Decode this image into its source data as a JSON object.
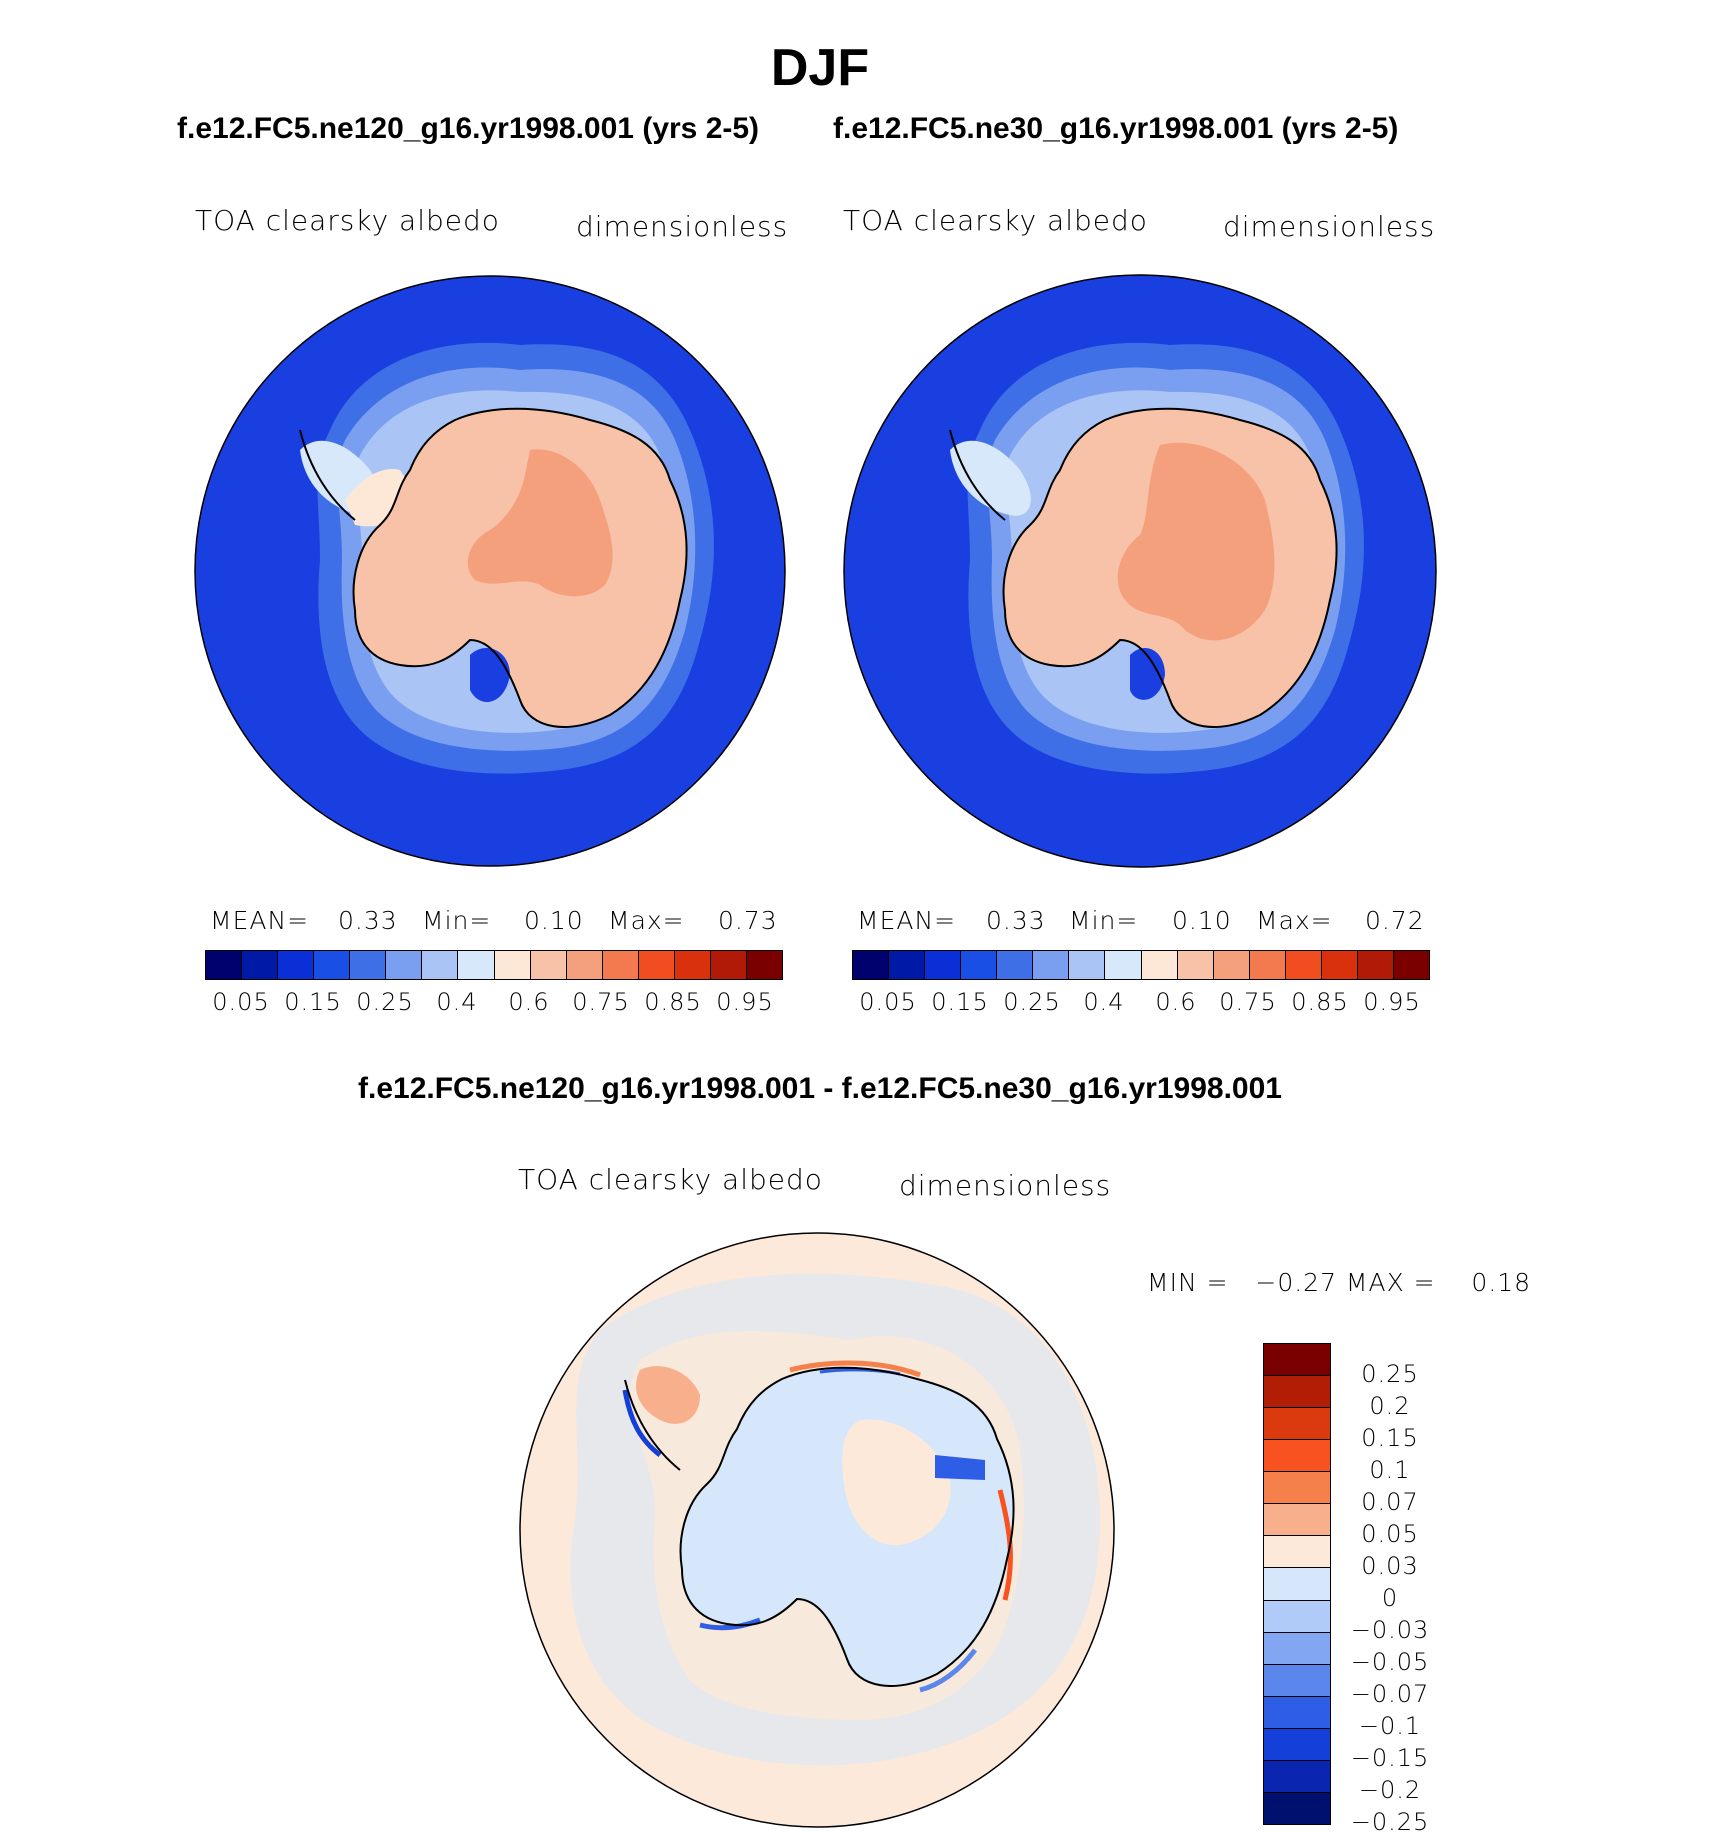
{
  "figure": {
    "title": "DJF",
    "top_left_caption": "f.e12.FC5.ne120_g16.yr1998.001 (yrs 2-5)",
    "top_right_caption": "f.e12.FC5.ne30_g16.yr1998.001 (yrs 2-5)",
    "diff_caption": "f.e12.FC5.ne120_g16.yr1998.001 - f.e12.FC5.ne30_g16.yr1998.001"
  },
  "panels": {
    "left": {
      "variable": "TOA clearsky albedo",
      "units": "dimensionless",
      "stats": {
        "mean_label": "MEAN=",
        "mean": "0.33",
        "min_label": "Min=",
        "min": "0.10",
        "max_label": "Max=",
        "max": "0.73"
      }
    },
    "right": {
      "variable": "TOA clearsky albedo",
      "units": "dimensionless",
      "stats": {
        "mean_label": "MEAN=",
        "mean": "0.33",
        "min_label": "Min=",
        "min": "0.10",
        "max_label": "Max=",
        "max": "0.72"
      }
    },
    "diff": {
      "variable": "TOA clearsky albedo",
      "units": "dimensionless",
      "minmax": "MIN =   −0.27 MAX =    0.18"
    }
  },
  "colorbars": {
    "main": {
      "colors": [
        "#00006e",
        "#0019a6",
        "#0a2fd6",
        "#1a4fe6",
        "#3f6fe6",
        "#7a9ff0",
        "#aac4f5",
        "#d8e8fb",
        "#fde8d8",
        "#f8c2a8",
        "#f5a07c",
        "#f27a4e",
        "#f04e20",
        "#d9300e",
        "#b01a06",
        "#7a0000"
      ],
      "tick_labels": [
        "0.05",
        "0.15",
        "0.25",
        "0.4",
        "0.6",
        "0.75",
        "0.85",
        "0.95"
      ]
    },
    "diff": {
      "colors": [
        "#7a0000",
        "#b21d05",
        "#db3a0e",
        "#f7521f",
        "#f5804c",
        "#f8b08c",
        "#fde9da",
        "#d6e7fb",
        "#b0cbf7",
        "#82a6f1",
        "#5b86ec",
        "#2e5ee6",
        "#143fd9",
        "#0a26b0",
        "#00106e"
      ],
      "tick_labels": [
        "0.25",
        "0.2",
        "0.15",
        "0.1",
        "0.07",
        "0.05",
        "0.03",
        "0",
        "−0.03",
        "−0.05",
        "−0.07",
        "−0.1",
        "−0.15",
        "−0.2",
        "−0.25"
      ]
    }
  }
}
